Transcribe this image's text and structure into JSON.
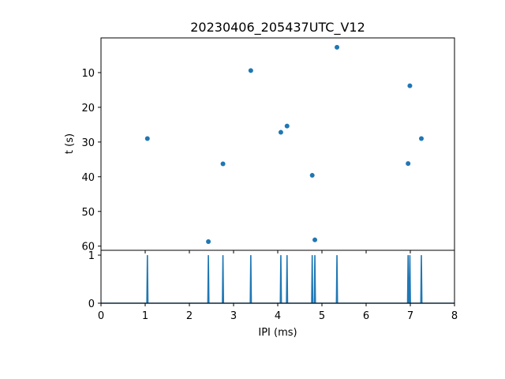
{
  "chart_data": [
    {
      "type": "scatter",
      "title": "20230406_205437UTC_V12",
      "xlabel": "",
      "ylabel": "t (s)",
      "xlim": [
        0,
        8
      ],
      "ylim": [
        61.2,
        0
      ],
      "y_inverted": true,
      "y_ticks": [
        10,
        20,
        30,
        40,
        50,
        60
      ],
      "x_tick_labels_shown": false,
      "color": "#1f77b4",
      "points": [
        {
          "x": 1.05,
          "y": 29.0
        },
        {
          "x": 2.43,
          "y": 58.7
        },
        {
          "x": 2.76,
          "y": 36.3
        },
        {
          "x": 3.39,
          "y": 9.4
        },
        {
          "x": 4.07,
          "y": 27.2
        },
        {
          "x": 4.21,
          "y": 25.4
        },
        {
          "x": 4.78,
          "y": 39.6
        },
        {
          "x": 4.84,
          "y": 58.2
        },
        {
          "x": 5.34,
          "y": 2.7
        },
        {
          "x": 6.95,
          "y": 36.2
        },
        {
          "x": 6.99,
          "y": 13.8
        },
        {
          "x": 7.25,
          "y": 29.0
        }
      ]
    },
    {
      "type": "line",
      "xlabel": "IPI (ms)",
      "ylabel": "",
      "xlim": [
        0,
        8
      ],
      "ylim": [
        0,
        1.1
      ],
      "x_ticks": [
        0,
        1,
        2,
        3,
        4,
        5,
        6,
        7,
        8
      ],
      "y_ticks": [
        0,
        1
      ],
      "color": "#1f77b4",
      "spikes": [
        1.05,
        2.43,
        2.76,
        3.39,
        4.07,
        4.21,
        4.78,
        4.84,
        5.34,
        6.95,
        6.99,
        7.25
      ],
      "spike_height": 1
    }
  ]
}
